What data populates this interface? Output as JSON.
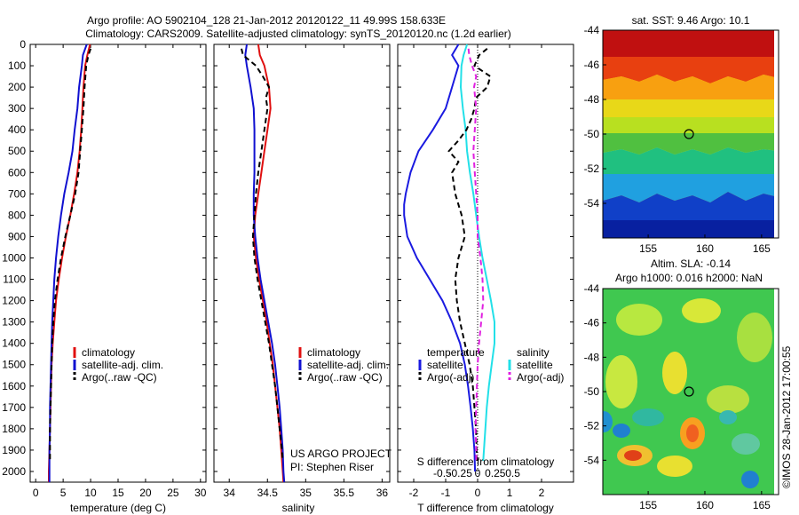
{
  "header": {
    "line1": "Argo profile: AO 5902104_128 21-Jan-2012 20120122_11 49.99S 158.633E",
    "line2": "Climatology: CARS2009. Satellite-adjusted climatology: synTS_20120120.nc (1.2d earlier)"
  },
  "credits": {
    "project": "US ARGO PROJECT",
    "pi": "PI: Stephen Riser",
    "watermark": "©IMOS 28-Jan-2012 17:00:55"
  },
  "colors": {
    "climatology": "#e01010",
    "satellite": "#1010d0",
    "argo": "#000000",
    "temp_sat": "#1a1ae0",
    "sal_sat": "#22e0e8",
    "sal_argo": "#e020e0"
  },
  "chart_data": [
    {
      "type": "line",
      "xlabel": "temperature (deg C)",
      "xlim": [
        -1,
        31
      ],
      "ylim": [
        2050,
        0
      ],
      "xticks": [
        "0",
        "5",
        "10",
        "15",
        "20",
        "25",
        "30"
      ],
      "xtick_values": [
        0,
        5,
        10,
        15,
        20,
        25,
        30
      ],
      "yticks": [
        "0",
        "100",
        "200",
        "300",
        "400",
        "500",
        "600",
        "700",
        "800",
        "900",
        "1000",
        "1100",
        "1200",
        "1300",
        "1400",
        "1500",
        "1600",
        "1700",
        "1800",
        "1900",
        "2000"
      ],
      "ytick_values": [
        0,
        100,
        200,
        300,
        400,
        500,
        600,
        700,
        800,
        900,
        1000,
        1100,
        1200,
        1300,
        1400,
        1500,
        1600,
        1700,
        1800,
        1900,
        2000
      ],
      "legend": [
        "climatology",
        "satellite-adj. clim.",
        "Argo(..raw -QC)"
      ],
      "series": [
        {
          "name": "climatology",
          "style": "climatology",
          "dash": false,
          "depth": [
            0,
            50,
            100,
            200,
            300,
            400,
            500,
            600,
            700,
            800,
            900,
            1000,
            1100,
            1200,
            1300,
            1400,
            1500,
            1600,
            1700,
            1800,
            1900,
            2000,
            2050
          ],
          "values": [
            9.9,
            9.4,
            9.0,
            8.7,
            8.5,
            8.3,
            8.0,
            7.6,
            7.0,
            6.3,
            5.5,
            4.8,
            4.2,
            3.7,
            3.4,
            3.1,
            2.9,
            2.8,
            2.7,
            2.6,
            2.5,
            2.4,
            2.4
          ]
        },
        {
          "name": "satellite-adj. clim.",
          "style": "satellite",
          "dash": false,
          "depth": [
            0,
            50,
            100,
            200,
            300,
            400,
            500,
            600,
            700,
            800,
            900,
            1000,
            1100,
            1200,
            1300,
            1400,
            1500,
            1600,
            1700,
            1800,
            1900,
            2000,
            2050
          ],
          "values": [
            9.3,
            8.6,
            8.4,
            7.9,
            7.6,
            7.1,
            6.7,
            6.0,
            5.2,
            4.6,
            4.1,
            3.7,
            3.4,
            3.2,
            3.0,
            2.9,
            2.8,
            2.7,
            2.6,
            2.6,
            2.5,
            2.5,
            2.5
          ]
        },
        {
          "name": "Argo(..raw -QC)",
          "style": "argo",
          "dash": true,
          "depth": [
            20,
            50,
            100,
            200,
            300,
            400,
            500,
            600,
            700,
            800,
            900,
            1000,
            1100,
            1200,
            1300,
            1400,
            1500,
            1600,
            1700,
            1800,
            1900,
            1950
          ],
          "values": [
            10.0,
            9.6,
            9.2,
            8.9,
            8.7,
            8.4,
            8.1,
            7.8,
            7.2,
            6.3,
            5.4,
            4.6,
            4.0,
            3.5,
            3.2,
            3.0,
            2.9,
            2.8,
            2.7,
            2.6,
            2.6,
            2.6
          ]
        }
      ]
    },
    {
      "type": "line",
      "xlabel": "salinity",
      "xlim": [
        33.8,
        36.1
      ],
      "ylim": [
        2050,
        0
      ],
      "xticks": [
        "34",
        "34.5",
        "35",
        "35.5",
        "36"
      ],
      "xtick_values": [
        34,
        34.5,
        35,
        35.5,
        36
      ],
      "legend": [
        "climatology",
        "satellite-adj. clim.",
        "Argo(..raw -QC)"
      ],
      "series": [
        {
          "name": "climatology",
          "style": "climatology",
          "dash": false,
          "depth": [
            0,
            50,
            100,
            200,
            300,
            400,
            500,
            600,
            700,
            800,
            900,
            1000,
            1100,
            1200,
            1300,
            1400,
            1500,
            1600,
            1700,
            1800,
            1900,
            2000,
            2050
          ],
          "values": [
            34.38,
            34.4,
            34.46,
            34.52,
            34.54,
            34.5,
            34.46,
            34.42,
            34.38,
            34.34,
            34.32,
            34.35,
            34.39,
            34.44,
            34.49,
            34.53,
            34.57,
            34.6,
            34.63,
            34.66,
            34.68,
            34.7,
            34.71
          ]
        },
        {
          "name": "satellite-adj. clim.",
          "style": "satellite",
          "dash": false,
          "depth": [
            0,
            50,
            100,
            200,
            300,
            400,
            500,
            600,
            700,
            800,
            900,
            1000,
            1100,
            1200,
            1300,
            1400,
            1500,
            1600,
            1700,
            1800,
            1900,
            2000,
            2050
          ],
          "values": [
            34.23,
            34.21,
            34.23,
            34.28,
            34.32,
            34.33,
            34.33,
            34.33,
            34.32,
            34.32,
            34.34,
            34.37,
            34.41,
            34.46,
            34.51,
            34.56,
            34.6,
            34.63,
            34.66,
            34.68,
            34.7,
            34.71,
            34.72
          ]
        },
        {
          "name": "Argo(..raw -QC)",
          "style": "argo",
          "dash": true,
          "depth": [
            20,
            50,
            100,
            150,
            200,
            250,
            300,
            400,
            500,
            600,
            700,
            800,
            900,
            1000,
            1100,
            1200,
            1300,
            1400,
            1500,
            1600,
            1700,
            1800,
            1900,
            1950
          ],
          "values": [
            34.16,
            34.18,
            34.35,
            34.44,
            34.52,
            34.48,
            34.5,
            34.46,
            34.42,
            34.38,
            34.35,
            34.33,
            34.31,
            34.33,
            34.37,
            34.42,
            34.47,
            34.52,
            34.56,
            34.6,
            34.63,
            34.66,
            34.69,
            34.7
          ]
        }
      ]
    },
    {
      "type": "line",
      "xlabel": "T difference from climatology",
      "xlabel_top": "S difference from climatology",
      "xlim": [
        -2.5,
        3.0
      ],
      "ylim": [
        2050,
        0
      ],
      "xticks": [
        "-2",
        "-1",
        "0",
        "1",
        "2"
      ],
      "xtick_values": [
        -2,
        -1,
        0,
        1,
        2
      ],
      "sticks": [
        "-0.5",
        "-0.25",
        "0",
        "0.25",
        "0.5"
      ],
      "stick_values": [
        -0.5,
        -0.25,
        0,
        0.25,
        0.5
      ],
      "s_scale": 2.2,
      "legend_temperature": {
        "title": "temperature",
        "items": [
          "satellite",
          "Argo(-adj)"
        ]
      },
      "legend_salinity": {
        "title": "salinity",
        "items": [
          "satellite",
          "Argo(-adj)"
        ]
      },
      "series": [
        {
          "name": "temperature satellite",
          "style": "temp_sat",
          "dash": false,
          "depth": [
            0,
            50,
            100,
            200,
            300,
            400,
            500,
            600,
            700,
            750,
            800,
            900,
            1000,
            1100,
            1200,
            1300,
            1400,
            1500,
            1600,
            1700,
            1800,
            1900,
            2000
          ],
          "values": [
            -0.6,
            -0.8,
            -0.6,
            -0.8,
            -1.0,
            -1.4,
            -1.85,
            -2.1,
            -2.25,
            -2.3,
            -2.3,
            -2.2,
            -1.9,
            -1.5,
            -1.1,
            -0.8,
            -0.55,
            -0.4,
            -0.3,
            -0.22,
            -0.15,
            -0.1,
            -0.08
          ]
        },
        {
          "name": "salinity satellite",
          "style": "sal_sat",
          "dash": false,
          "depth": [
            0,
            50,
            100,
            200,
            300,
            400,
            500,
            600,
            700,
            800,
            900,
            1000,
            1100,
            1200,
            1300,
            1400,
            1500,
            1600,
            1700,
            1800,
            1900,
            1950
          ],
          "values": [
            -0.15,
            -0.2,
            -0.23,
            -0.24,
            -0.21,
            -0.17,
            -0.15,
            -0.11,
            -0.06,
            -0.02,
            0.02,
            0.07,
            0.13,
            0.19,
            0.24,
            0.24,
            0.2,
            0.16,
            0.13,
            0.11,
            0.09,
            0.08
          ]
        },
        {
          "name": "temperature Argo(-adj)",
          "style": "argo",
          "dash": true,
          "depth": [
            20,
            50,
            100,
            150,
            200,
            250,
            300,
            350,
            400,
            450,
            500,
            550,
            600,
            700,
            800,
            900,
            1000,
            1100,
            1200,
            1300,
            1400,
            1500,
            1600,
            1700,
            1800,
            1900,
            1950
          ],
          "values": [
            0.3,
            0.05,
            -0.1,
            0.4,
            0.3,
            -0.05,
            -0.1,
            -0.2,
            -0.35,
            -0.6,
            -0.9,
            -0.6,
            -0.8,
            -0.7,
            -0.5,
            -0.4,
            -0.6,
            -0.7,
            -0.65,
            -0.55,
            -0.4,
            -0.25,
            -0.15,
            -0.1,
            -0.05,
            -0.03,
            -0.02
          ]
        },
        {
          "name": "salinity Argo(-adj)",
          "style": "sal_argo",
          "dash": true,
          "depth": [
            20,
            50,
            100,
            150,
            200,
            300,
            400,
            500,
            600,
            700,
            800,
            900,
            1000,
            1100,
            1200,
            1300,
            1400,
            1500,
            1600,
            1700,
            1800,
            1900,
            1950
          ],
          "values": [
            -0.13,
            -0.12,
            -0.08,
            -0.02,
            -0.05,
            -0.02,
            -0.04,
            -0.06,
            -0.04,
            -0.02,
            0.0,
            0.0,
            0.04,
            0.07,
            0.08,
            0.05,
            0.02,
            0.0,
            -0.01,
            -0.02,
            -0.03,
            -0.02,
            -0.02
          ]
        }
      ]
    },
    {
      "type": "heatmap",
      "title": "sat. SST: 9.46 Argo: 10.1",
      "xlim": [
        151,
        166.5
      ],
      "ylim": [
        -56,
        -44
      ],
      "xticks": [
        "155",
        "160",
        "165"
      ],
      "xtick_values": [
        155,
        160,
        165
      ],
      "yticks": [
        "-44",
        "-46",
        "-48",
        "-50",
        "-52",
        "-54"
      ],
      "ytick_values": [
        -44,
        -46,
        -48,
        -50,
        -52,
        -54
      ],
      "float_position": {
        "lon": 158.6,
        "lat": -50.0
      }
    },
    {
      "type": "heatmap",
      "title": "Altim. SLA: -0.14",
      "subtitle": "Argo h1000: 0.016 h2000: NaN",
      "xlim": [
        151,
        166.5
      ],
      "ylim": [
        -56,
        -44
      ],
      "xticks": [
        "155",
        "160",
        "165"
      ],
      "xtick_values": [
        155,
        160,
        165
      ],
      "yticks": [
        "-44",
        "-46",
        "-48",
        "-50",
        "-52",
        "-54"
      ],
      "ytick_values": [
        -44,
        -46,
        -48,
        -50,
        -52,
        -54
      ],
      "float_position": {
        "lon": 158.6,
        "lat": -50.0
      }
    }
  ]
}
